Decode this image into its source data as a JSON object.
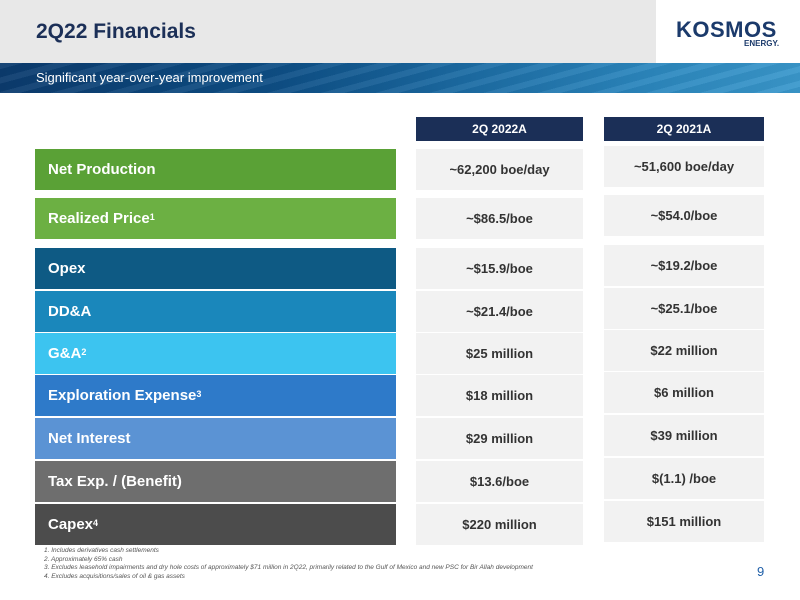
{
  "header": {
    "title": "2Q22 Financials",
    "subtitle": "Significant year-over-year improvement",
    "logo_word": "KOSMOS",
    "logo_sub": "ENERGY."
  },
  "columns": [
    "2Q 2022A",
    "2Q 2021A"
  ],
  "rows": [
    {
      "label": "Net Production",
      "sup": "",
      "color": "#5aa136",
      "v2022": "~62,200 boe/day",
      "v2021": "~51,600 boe/day"
    },
    {
      "label": "Realized Price",
      "sup": "1",
      "color": "#6cb043",
      "v2022": "~$86.5/boe",
      "v2021": "~$54.0/boe"
    },
    {
      "label": "Opex",
      "sup": "",
      "color": "#0e5a84",
      "v2022": "~$15.9/boe",
      "v2021": "~$19.2/boe"
    },
    {
      "label": "DD&A",
      "sup": "",
      "color": "#1a87bb",
      "v2022": "~$21.4/boe",
      "v2021": "~$25.1/boe"
    },
    {
      "label": "G&A",
      "sup": "2",
      "color": "#3cc4f0",
      "v2022": "$25 million",
      "v2021": "$22 million"
    },
    {
      "label": "Exploration Expense",
      "sup": "3",
      "color": "#2e7ac9",
      "v2022": "$18 million",
      "v2021": "$6 million"
    },
    {
      "label": "Net Interest",
      "sup": "",
      "color": "#5b93d4",
      "v2022": "$29 million",
      "v2021": "$39 million"
    },
    {
      "label": "Tax Exp. / (Benefit)",
      "sup": "",
      "color": "#6e6e6e",
      "v2022": "$13.6/boe",
      "v2021": "$(1.1) /boe"
    },
    {
      "label": "Capex",
      "sup": "4",
      "color": "#4c4c4c",
      "v2022": "$220 million",
      "v2021": "$151 million"
    }
  ],
  "footnotes": [
    "1. Includes derivatives cash settlements",
    "2. Approximately 65% cash",
    "3. Excludes leasehold impairments and dry hole costs of approximately $71 million in 2Q22, primarily related to the Gulf of Mexico and new PSC for Bir Allah development",
    "4. Excludes acquisitions/sales of oil & gas assets"
  ],
  "page_number": "9"
}
